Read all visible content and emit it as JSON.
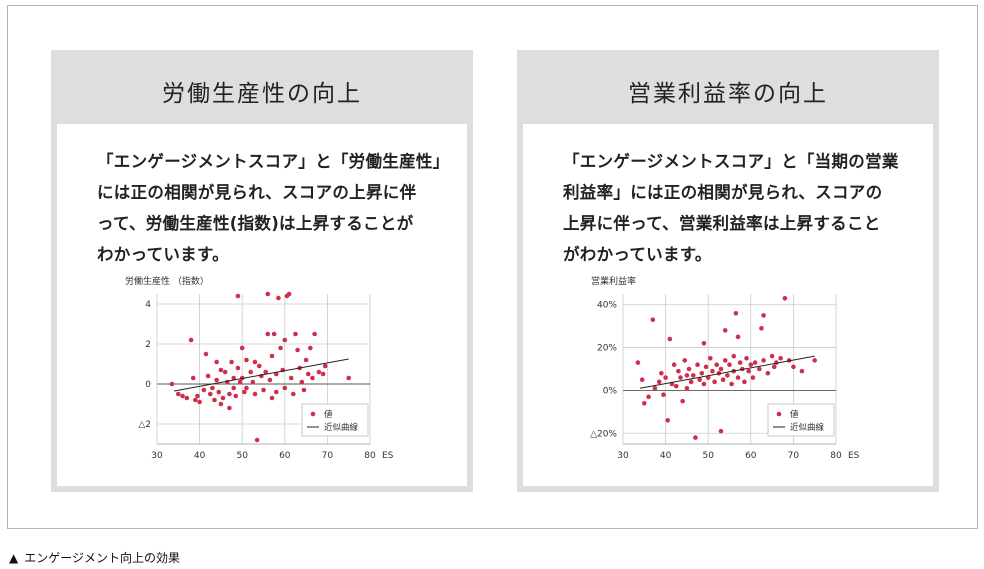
{
  "caption": {
    "marker": "▲",
    "text": "エンゲージメント向上の効果"
  },
  "cards": [
    {
      "title": "労働生産性の向上",
      "body_lines": [
        "「エンゲージメントスコア」と「労働生産性」",
        "には正の相関が見られ、スコアの上昇に伴",
        "って、労働生産性(指数)は上昇することが",
        "わかっています。"
      ]
    },
    {
      "title": "営業利益率の向上",
      "body_lines": [
        "「エンゲージメントスコア」と「当期の営業",
        "利益率」には正の相関が見られ、スコアの",
        "上昇に伴って、営業利益率は上昇すること",
        "がわかっています。"
      ]
    }
  ],
  "colors": {
    "point": "#cf2f48",
    "line": "#222222",
    "grid": "#cccccc",
    "card_bg": "#dedede"
  },
  "chart_data": [
    {
      "type": "scatter",
      "title": "",
      "ylabel": "労働生産性 （指数）",
      "xlabel": "ES",
      "xlim": [
        30,
        80
      ],
      "ylim": [
        -3,
        4.5
      ],
      "x_ticks": [
        30,
        40,
        50,
        60,
        70,
        80
      ],
      "y_ticks": [
        {
          "value": 4,
          "label": "4"
        },
        {
          "value": 2,
          "label": "2"
        },
        {
          "value": 0,
          "label": "0"
        },
        {
          "value": -2,
          "label": "△2"
        }
      ],
      "legend": [
        {
          "marker": "point",
          "label": "値"
        },
        {
          "marker": "line",
          "label": "近似曲線"
        }
      ],
      "legend_position": "bottom-right",
      "trendline": [
        [
          34,
          -0.35
        ],
        [
          75,
          1.25
        ]
      ],
      "series": [
        {
          "name": "値",
          "points": [
            [
              33.5,
              0
            ],
            [
              35,
              -0.5
            ],
            [
              36,
              -0.6
            ],
            [
              37,
              -0.7
            ],
            [
              38,
              2.2
            ],
            [
              38.5,
              0.3
            ],
            [
              39,
              -0.8
            ],
            [
              39.5,
              -0.6
            ],
            [
              40,
              -0.9
            ],
            [
              41,
              -0.3
            ],
            [
              41.5,
              1.5
            ],
            [
              42,
              0.4
            ],
            [
              42.5,
              -0.5
            ],
            [
              43,
              -0.2
            ],
            [
              43.5,
              -0.8
            ],
            [
              44,
              1.1
            ],
            [
              44,
              0.2
            ],
            [
              44.5,
              -0.4
            ],
            [
              45,
              -1
            ],
            [
              45,
              0.7
            ],
            [
              45.5,
              -0.7
            ],
            [
              46,
              0.6
            ],
            [
              46.5,
              0.1
            ],
            [
              47,
              -0.5
            ],
            [
              47,
              -1.2
            ],
            [
              47.5,
              1.1
            ],
            [
              48,
              0.3
            ],
            [
              48,
              -0.2
            ],
            [
              48.5,
              -0.6
            ],
            [
              49,
              4.4
            ],
            [
              49,
              0.8
            ],
            [
              49.5,
              0.1
            ],
            [
              50,
              1.8
            ],
            [
              50,
              0.3
            ],
            [
              50.5,
              -0.4
            ],
            [
              51,
              1.2
            ],
            [
              51,
              -0.2
            ],
            [
              52,
              0.6
            ],
            [
              52.5,
              0.1
            ],
            [
              53,
              1.1
            ],
            [
              53,
              -0.5
            ],
            [
              53.5,
              -2.8
            ],
            [
              54,
              0.9
            ],
            [
              54.5,
              0.4
            ],
            [
              55,
              -0.3
            ],
            [
              55.5,
              0.6
            ],
            [
              56,
              2.5
            ],
            [
              56,
              4.5
            ],
            [
              56.5,
              0.2
            ],
            [
              57,
              1.4
            ],
            [
              57,
              -0.7
            ],
            [
              57.5,
              2.5
            ],
            [
              58,
              0.5
            ],
            [
              58,
              -0.4
            ],
            [
              58.5,
              4.3
            ],
            [
              59,
              1.8
            ],
            [
              59.5,
              0.7
            ],
            [
              60,
              2.2
            ],
            [
              60,
              -0.2
            ],
            [
              60.5,
              4.4
            ],
            [
              61,
              4.5
            ],
            [
              61.5,
              0.3
            ],
            [
              62,
              -0.5
            ],
            [
              62.5,
              2.5
            ],
            [
              63,
              1.7
            ],
            [
              63.5,
              0.8
            ],
            [
              64,
              0.1
            ],
            [
              64.5,
              -0.3
            ],
            [
              65,
              1.2
            ],
            [
              65.5,
              0.5
            ],
            [
              66,
              1.8
            ],
            [
              66.5,
              0.3
            ],
            [
              67,
              2.5
            ],
            [
              68,
              0.6
            ],
            [
              69,
              0.5
            ],
            [
              69.5,
              0.9
            ],
            [
              75,
              0.3
            ]
          ]
        }
      ]
    },
    {
      "type": "scatter",
      "title": "",
      "ylabel": "営業利益率",
      "xlabel": "ES",
      "xlim": [
        30,
        80
      ],
      "ylim": [
        -0.25,
        0.45
      ],
      "x_ticks": [
        30,
        40,
        50,
        60,
        70,
        80
      ],
      "y_ticks": [
        {
          "value": 0.4,
          "label": "40%"
        },
        {
          "value": 0.2,
          "label": "20%"
        },
        {
          "value": 0,
          "label": "0%"
        },
        {
          "value": -0.2,
          "label": "△20%"
        }
      ],
      "legend": [
        {
          "marker": "point",
          "label": "値"
        },
        {
          "marker": "line",
          "label": "近似曲線"
        }
      ],
      "legend_position": "bottom-right",
      "trendline": [
        [
          34,
          0.01
        ],
        [
          75,
          0.16
        ]
      ],
      "series": [
        {
          "name": "値",
          "points": [
            [
              33.5,
              0.13
            ],
            [
              34.5,
              0.05
            ],
            [
              35,
              -0.06
            ],
            [
              36,
              -0.03
            ],
            [
              37,
              0.33
            ],
            [
              37.5,
              0.01
            ],
            [
              38.5,
              0.04
            ],
            [
              39,
              0.08
            ],
            [
              39.5,
              -0.02
            ],
            [
              40,
              0.06
            ],
            [
              40.5,
              -0.14
            ],
            [
              41,
              0.24
            ],
            [
              41.5,
              0.03
            ],
            [
              42,
              0.12
            ],
            [
              42.5,
              0.02
            ],
            [
              43,
              0.09
            ],
            [
              43.5,
              0.06
            ],
            [
              44,
              -0.05
            ],
            [
              44.5,
              0.14
            ],
            [
              45,
              0.07
            ],
            [
              45,
              0.01
            ],
            [
              45.5,
              0.1
            ],
            [
              46,
              0.04
            ],
            [
              46.5,
              0.07
            ],
            [
              47,
              -0.22
            ],
            [
              47.5,
              0.12
            ],
            [
              48,
              0.05
            ],
            [
              48.5,
              0.08
            ],
            [
              49,
              0.22
            ],
            [
              49,
              0.03
            ],
            [
              49.5,
              0.11
            ],
            [
              50,
              0.06
            ],
            [
              50.5,
              0.15
            ],
            [
              51,
              0.09
            ],
            [
              51.5,
              0.04
            ],
            [
              52,
              0.12
            ],
            [
              52.5,
              0.08
            ],
            [
              53,
              -0.19
            ],
            [
              53,
              0.1
            ],
            [
              53.5,
              0.05
            ],
            [
              54,
              0.28
            ],
            [
              54,
              0.14
            ],
            [
              54.5,
              0.07
            ],
            [
              55,
              0.12
            ],
            [
              55.5,
              0.03
            ],
            [
              56,
              0.16
            ],
            [
              56,
              0.09
            ],
            [
              56.5,
              0.36
            ],
            [
              57,
              0.25
            ],
            [
              57,
              0.06
            ],
            [
              57.5,
              0.13
            ],
            [
              58,
              0.1
            ],
            [
              58.5,
              0.04
            ],
            [
              59,
              0.15
            ],
            [
              59.5,
              0.09
            ],
            [
              60,
              0.12
            ],
            [
              60.5,
              0.06
            ],
            [
              61,
              0.13
            ],
            [
              62,
              0.1
            ],
            [
              62.5,
              0.29
            ],
            [
              63,
              0.35
            ],
            [
              63,
              0.14
            ],
            [
              64,
              0.08
            ],
            [
              65,
              0.16
            ],
            [
              65.5,
              0.11
            ],
            [
              66,
              0.13
            ],
            [
              67,
              0.15
            ],
            [
              68,
              0.43
            ],
            [
              69,
              0.14
            ],
            [
              70,
              0.11
            ],
            [
              72,
              0.09
            ],
            [
              75,
              0.14
            ]
          ]
        }
      ]
    }
  ]
}
